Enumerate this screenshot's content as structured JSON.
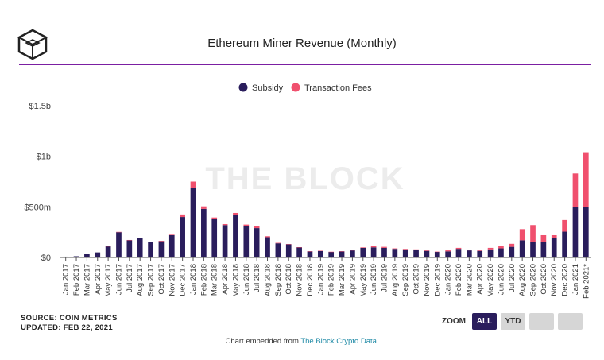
{
  "header": {
    "title": "Ethereum Miner Revenue (Monthly)"
  },
  "colors": {
    "subsidy": "#2a1d5c",
    "fees": "#f0506e",
    "rule": "#7b1fa2",
    "link": "#1f8aa6"
  },
  "watermark": "THE BLOCK",
  "legend": {
    "subsidy": "Subsidy",
    "fees": "Transaction Fees"
  },
  "footer": {
    "source": "SOURCE: COIN METRICS",
    "updated": "UPDATED: FEB 22, 2021",
    "embed_prefix": "Chart embedded from ",
    "embed_link": "The Block Crypto Data",
    "embed_suffix": "."
  },
  "zoom": {
    "label": "ZOOM",
    "buttons": [
      "ALL",
      "YTD",
      "",
      ""
    ],
    "active": "ALL"
  },
  "chart_data": {
    "type": "bar",
    "stacked": true,
    "title": "Ethereum Miner Revenue (Monthly)",
    "categories": [
      "Jan 2017",
      "Feb 2017",
      "Mar 2017",
      "Apr 2017",
      "May 2017",
      "Jun 2017",
      "Jul 2017",
      "Aug 2017",
      "Sep 2017",
      "Oct 2017",
      "Nov 2017",
      "Dec 2017",
      "Jan 2018",
      "Feb 2018",
      "Mar 2018",
      "Apr 2018",
      "May 2018",
      "Jun 2018",
      "Jul 2018",
      "Aug 2018",
      "Sep 2018",
      "Oct 2018",
      "Nov 2018",
      "Dec 2018",
      "Jan 2019",
      "Feb 2019",
      "Mar 2019",
      "Apr 2019",
      "May 2019",
      "Jun 2019",
      "Jul 2019",
      "Aug 2019",
      "Sep 2019",
      "Oct 2019",
      "Nov 2019",
      "Dec 2019",
      "Jan 2020",
      "Feb 2020",
      "Mar 2020",
      "Apr 2020",
      "May 2020",
      "Jun 2020",
      "Jul 2020",
      "Aug 2020",
      "Sep 2020",
      "Oct 2020",
      "Nov 2020",
      "Dec 2020",
      "Jan 2021",
      "Feb 2021*"
    ],
    "series": [
      {
        "name": "Subsidy",
        "color": "#2a1d5c",
        "values": [
          8,
          12,
          35,
          50,
          110,
          250,
          170,
          190,
          150,
          160,
          220,
          400,
          690,
          480,
          380,
          320,
          420,
          310,
          290,
          200,
          140,
          130,
          100,
          60,
          65,
          55,
          60,
          70,
          95,
          100,
          95,
          85,
          80,
          75,
          65,
          55,
          60,
          85,
          70,
          65,
          80,
          90,
          105,
          170,
          150,
          150,
          195,
          255,
          500,
          500
        ]
      },
      {
        "name": "Transaction Fees",
        "color": "#f0506e",
        "values": [
          0,
          0,
          0,
          0,
          2,
          3,
          3,
          5,
          5,
          5,
          5,
          25,
          60,
          25,
          15,
          10,
          20,
          15,
          20,
          10,
          5,
          3,
          2,
          2,
          2,
          2,
          2,
          3,
          5,
          10,
          10,
          5,
          5,
          5,
          5,
          3,
          10,
          10,
          5,
          5,
          15,
          20,
          30,
          110,
          170,
          70,
          25,
          115,
          330,
          540
        ]
      }
    ],
    "ylabel": "",
    "ylim": [
      0,
      1500000000
    ],
    "units": "USD",
    "yticks": [
      {
        "label": "$0",
        "value": 0
      },
      {
        "label": "$500m",
        "value": 500
      },
      {
        "label": "$1b",
        "value": 1000
      },
      {
        "label": "$1.5b",
        "value": 1500
      }
    ],
    "grid": false,
    "legend_position": "top-center"
  }
}
